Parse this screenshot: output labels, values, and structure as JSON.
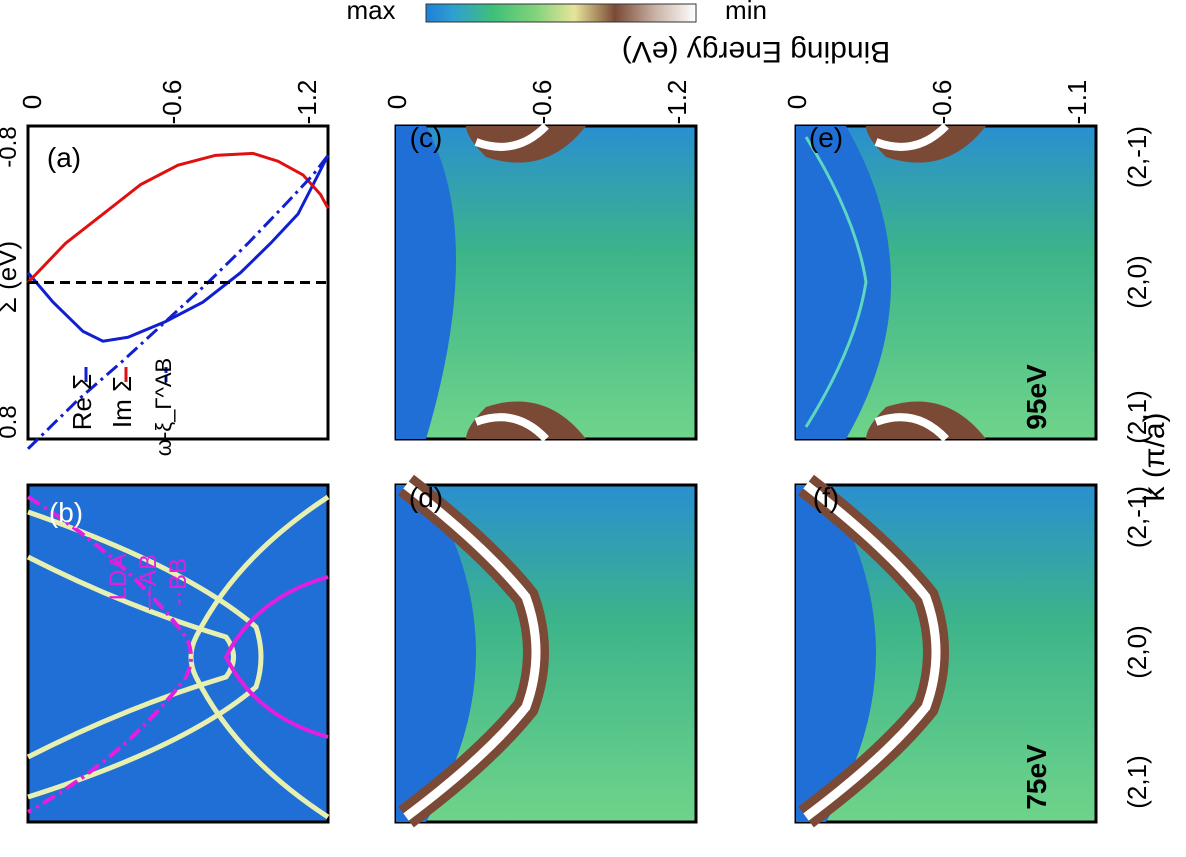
{
  "figure": {
    "colorbar": {
      "max_label": "max",
      "min_label": "min",
      "stops": [
        "#ffffff",
        "#c9b3a6",
        "#7a4a36",
        "#e8e49a",
        "#7fd27a",
        "#3fc07a",
        "#2f9fd0",
        "#1e7fd8"
      ]
    },
    "shared": {
      "ylabel": "Binding Energy (eV)",
      "xlabel": "k (π/a)",
      "k_ticks": [
        "(2,-1)",
        "(2,0)",
        "(2,1)"
      ]
    },
    "colors": {
      "bg_blue": "#1f6fd6",
      "green": "#52c47a",
      "magenta": "#e21ee0"
    },
    "panels": {
      "a": {
        "label": "(a)",
        "ytick_top": "0",
        "ytick_mid": "-0.6",
        "ytick_bot": "-1.2",
        "xtick_left": "-0.8",
        "xtick_right": "0.8",
        "xlabel": "Σ (eV)"
      },
      "b": {
        "label": "(b)"
      },
      "c": {
        "label": "(c)",
        "ytick_top": "0",
        "ytick_mid": "-0.6",
        "ytick_bot": "-1.2"
      },
      "d": {
        "label": "(d)"
      },
      "e": {
        "label": "(e)",
        "ytick_top": "0",
        "ytick_mid": "-0.6",
        "ytick_bot": "-1.1"
      },
      "f": {
        "label": "(f)"
      }
    },
    "photon_left": "95eV",
    "photon_right": "75eV"
  },
  "chart_data": [
    {
      "type": "line",
      "title": "(a)",
      "xlabel": "Σ (eV)",
      "ylabel": "Binding Energy (eV)",
      "xlim": [
        -0.8,
        0.8
      ],
      "ylim": [
        -1.2,
        0
      ],
      "legend": [
        "Re Σ",
        "Im Σ",
        "ω-ξ_Γ^AB"
      ],
      "series": [
        {
          "name": "Re Σ",
          "color": "#1020d0",
          "x": [
            -0.05,
            0.1,
            0.25,
            0.3,
            0.28,
            0.2,
            0.1,
            -0.05,
            -0.2,
            -0.35,
            -0.55,
            -0.65
          ],
          "y": [
            0,
            -0.1,
            -0.22,
            -0.3,
            -0.4,
            -0.55,
            -0.7,
            -0.85,
            -0.97,
            -1.08,
            -1.16,
            -1.2
          ]
        },
        {
          "name": "Im Σ",
          "color": "#e01010",
          "x": [
            0,
            -0.2,
            -0.35,
            -0.5,
            -0.6,
            -0.65,
            -0.66,
            -0.62,
            -0.55,
            -0.45,
            -0.38
          ],
          "y": [
            0,
            -0.15,
            -0.3,
            -0.45,
            -0.6,
            -0.75,
            -0.9,
            -1.0,
            -1.1,
            -1.17,
            -1.2
          ]
        },
        {
          "name": "ω-ξ_Γ^AB",
          "color": "#1020d0",
          "dashed": true,
          "x": [
            0.85,
            0.6,
            0.4,
            0.2,
            0.0,
            -0.2,
            -0.4,
            -0.55,
            -0.65
          ],
          "y": [
            0,
            -0.2,
            -0.38,
            -0.55,
            -0.72,
            -0.88,
            -1.03,
            -1.14,
            -1.2
          ]
        },
        {
          "name": "E_F",
          "color": "#000000",
          "dashed": true,
          "x": [
            0,
            0
          ],
          "y": [
            0,
            -1.2
          ]
        }
      ]
    }
  ]
}
